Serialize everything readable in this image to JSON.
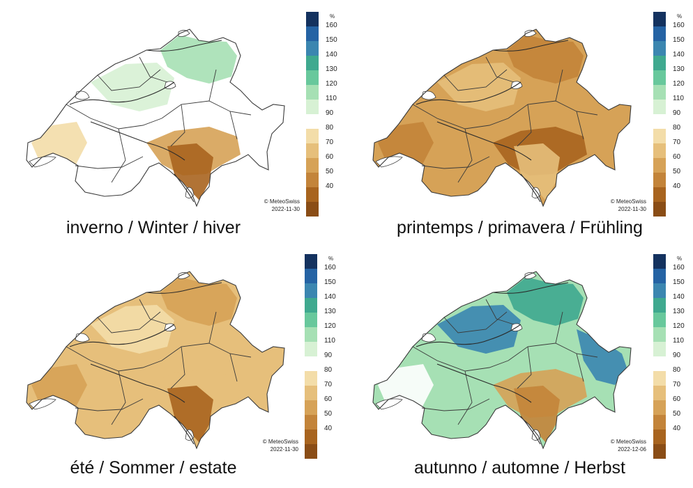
{
  "colors": {
    "scale": [
      "#8a4d16",
      "#a8641f",
      "#c3843a",
      "#d6a257",
      "#e6bf7b",
      "#f3dda9",
      "#ffffff",
      "#d7f1d4",
      "#a6e0b4",
      "#68c89c",
      "#3fa98f",
      "#3b86b0",
      "#2563a4",
      "#14325f"
    ],
    "boundary": "#3a3a3a",
    "river": "#2a2a2a"
  },
  "legend": {
    "unit": "%",
    "ticks": [
      "160",
      "150",
      "140",
      "130",
      "120",
      "110",
      "90",
      "80",
      "70",
      "60",
      "50",
      "40"
    ]
  },
  "panels": [
    {
      "title": "inverno / Winter / hiver",
      "credit": "© MeteoSwiss",
      "date": "2022-11-30",
      "base_color_index": 6,
      "patches": [
        {
          "color_index": 8,
          "label": "northeast"
        },
        {
          "color_index": 7,
          "label": "central plateau"
        },
        {
          "color_index": 5,
          "label": "western lakes"
        },
        {
          "color_index": 3,
          "label": "southern alps"
        },
        {
          "color_index": 1,
          "label": "ticino"
        }
      ]
    },
    {
      "title": "printemps / primavera / Frühling",
      "credit": "© MeteoSwiss",
      "date": "2022-11-30",
      "base_color_index": 3,
      "patches": [
        {
          "color_index": 2,
          "label": "west"
        },
        {
          "color_index": 4,
          "label": "north"
        },
        {
          "color_index": 2,
          "label": "alps"
        },
        {
          "color_index": 1,
          "label": "ticino"
        },
        {
          "color_index": 4,
          "label": "east"
        }
      ]
    },
    {
      "title": "été / Sommer / estate",
      "credit": "© MeteoSwiss",
      "date": "2022-11-30",
      "base_color_index": 4,
      "patches": [
        {
          "color_index": 3,
          "label": "west"
        },
        {
          "color_index": 5,
          "label": "central"
        },
        {
          "color_index": 3,
          "label": "alps"
        },
        {
          "color_index": 4,
          "label": "east"
        },
        {
          "color_index": 1,
          "label": "ticino"
        }
      ]
    },
    {
      "title": "autunno / automne / Herbst",
      "credit": "© MeteoSwiss",
      "date": "2022-12-06",
      "base_color_index": 8,
      "patches": [
        {
          "color_index": 10,
          "label": "west jura"
        },
        {
          "color_index": 11,
          "label": "lake neuchatel"
        },
        {
          "color_index": 6,
          "label": "central"
        },
        {
          "color_index": 3,
          "label": "southern alps"
        },
        {
          "color_index": 2,
          "label": "ticino"
        },
        {
          "color_index": 11,
          "label": "northern border"
        }
      ]
    }
  ]
}
